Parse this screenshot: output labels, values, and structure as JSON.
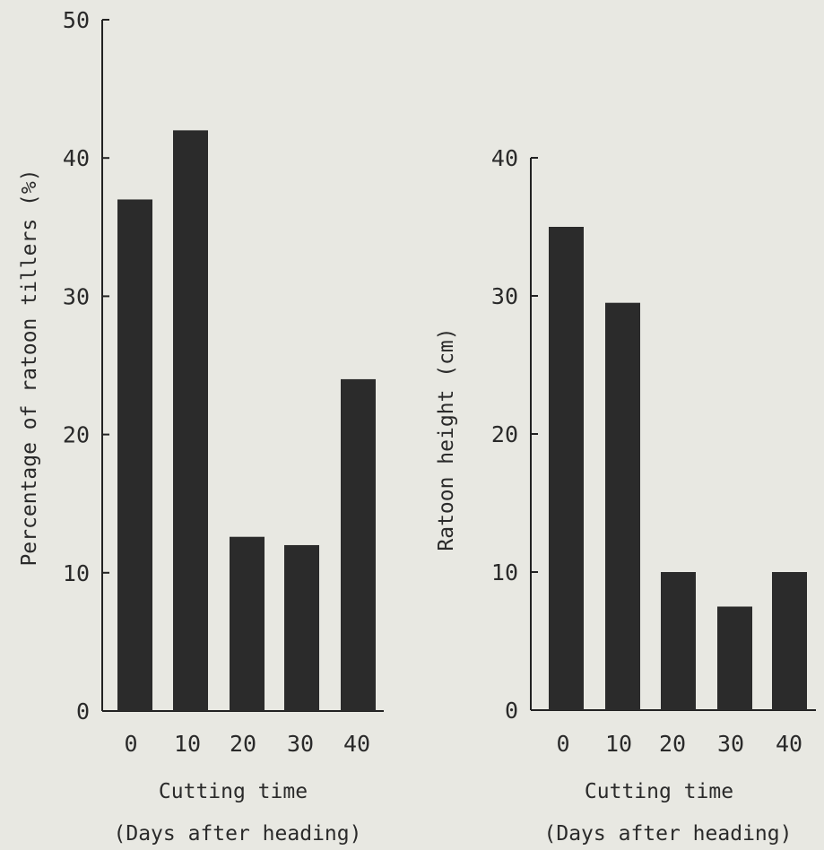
{
  "chart_data": [
    {
      "type": "bar",
      "categories": [
        "0",
        "10",
        "20",
        "30",
        "40"
      ],
      "values": [
        37,
        42,
        12.6,
        12,
        24
      ],
      "ylabel": "Percentage of ratoon tillers (%)",
      "xlabel_line1": "Cutting time",
      "xlabel_line2": "(Days after heading)",
      "ylim": [
        0,
        50
      ],
      "yticks": [
        "0",
        "10",
        "20",
        "30",
        "40",
        "50"
      ],
      "grid": false,
      "bar_color": "#2b2b2b"
    },
    {
      "type": "bar",
      "categories": [
        "0",
        "10",
        "20",
        "30",
        "40"
      ],
      "values": [
        35,
        29.5,
        10,
        7.5,
        10
      ],
      "ylabel": "Ratoon height (cm)",
      "xlabel_line1": "Cutting time",
      "xlabel_line2": "(Days after heading)",
      "ylim": [
        0,
        40
      ],
      "yticks": [
        "0",
        "10",
        "20",
        "30",
        "40"
      ],
      "grid": false,
      "bar_color": "#2b2b2b"
    }
  ]
}
